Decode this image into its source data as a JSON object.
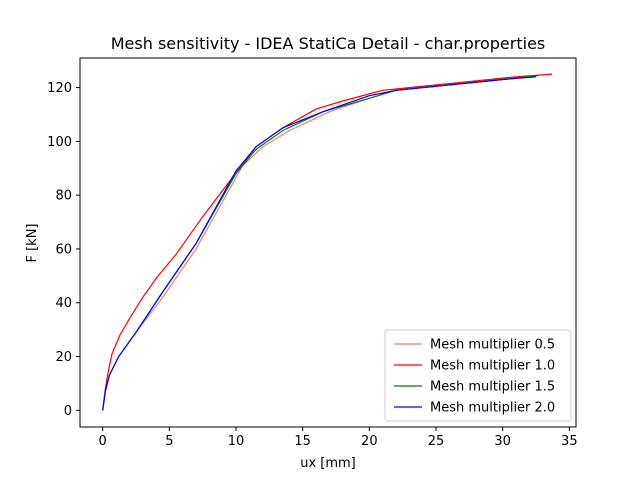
{
  "chart_data": {
    "type": "line",
    "title": "Mesh sensitivity - IDEA StatiCa Detail - char.properties",
    "xlabel": "ux [mm]",
    "ylabel": "F [kN]",
    "xlim": [
      -1.7,
      35.5
    ],
    "ylim": [
      -6.2,
      131
    ],
    "xticks": [
      0,
      5,
      10,
      15,
      20,
      25,
      30,
      35
    ],
    "yticks": [
      0,
      20,
      40,
      60,
      80,
      100,
      120
    ],
    "grid": false,
    "legend_position": "lower-right",
    "series": [
      {
        "name": "Mesh multiplier 0.5",
        "color": "#f08070",
        "points": [
          [
            0,
            0
          ],
          [
            0.2,
            7
          ],
          [
            0.5,
            13
          ],
          [
            1.2,
            20
          ],
          [
            2.5,
            29
          ],
          [
            4.5,
            42
          ],
          [
            7,
            60
          ],
          [
            10.5,
            91
          ],
          [
            12,
            98
          ],
          [
            14,
            104
          ],
          [
            17,
            111
          ],
          [
            20,
            116
          ],
          [
            22,
            119
          ],
          [
            26,
            121
          ],
          [
            30,
            123
          ],
          [
            32.5,
            124
          ]
        ]
      },
      {
        "name": "Mesh multiplier 1.0",
        "color": "#ff0000",
        "points": [
          [
            0,
            0
          ],
          [
            0.2,
            8
          ],
          [
            0.4,
            14
          ],
          [
            0.7,
            21
          ],
          [
            1.3,
            28
          ],
          [
            2,
            34
          ],
          [
            3,
            42
          ],
          [
            4,
            49
          ],
          [
            5.5,
            58
          ],
          [
            7.5,
            72
          ],
          [
            9.5,
            85
          ],
          [
            11.5,
            98
          ],
          [
            13.5,
            105
          ],
          [
            16,
            112
          ],
          [
            18,
            115
          ],
          [
            21,
            119
          ],
          [
            23,
            120
          ],
          [
            27,
            122
          ],
          [
            31,
            124
          ],
          [
            33.7,
            125
          ]
        ]
      },
      {
        "name": "Mesh multiplier 1.5",
        "color": "#008000",
        "points": [
          [
            0,
            0
          ],
          [
            0.2,
            7
          ],
          [
            0.5,
            13
          ],
          [
            1.2,
            20
          ],
          [
            2.5,
            29
          ],
          [
            4.5,
            44
          ],
          [
            7,
            62
          ],
          [
            10,
            88
          ],
          [
            11.5,
            97
          ],
          [
            13.5,
            104
          ],
          [
            16.5,
            111
          ],
          [
            20,
            116
          ],
          [
            22,
            119
          ],
          [
            26,
            121
          ],
          [
            30,
            123
          ],
          [
            32.7,
            124.5
          ]
        ]
      },
      {
        "name": "Mesh multiplier 2.0",
        "color": "#0000ff",
        "points": [
          [
            0,
            0
          ],
          [
            0.2,
            7
          ],
          [
            0.5,
            13
          ],
          [
            1.2,
            20
          ],
          [
            2.5,
            29
          ],
          [
            4.5,
            44
          ],
          [
            7,
            62
          ],
          [
            10,
            89
          ],
          [
            11.5,
            98
          ],
          [
            13.5,
            105
          ],
          [
            16.5,
            111
          ],
          [
            20,
            117
          ],
          [
            22,
            119
          ],
          [
            26,
            121
          ],
          [
            30,
            123
          ],
          [
            32.5,
            124
          ]
        ]
      }
    ]
  }
}
